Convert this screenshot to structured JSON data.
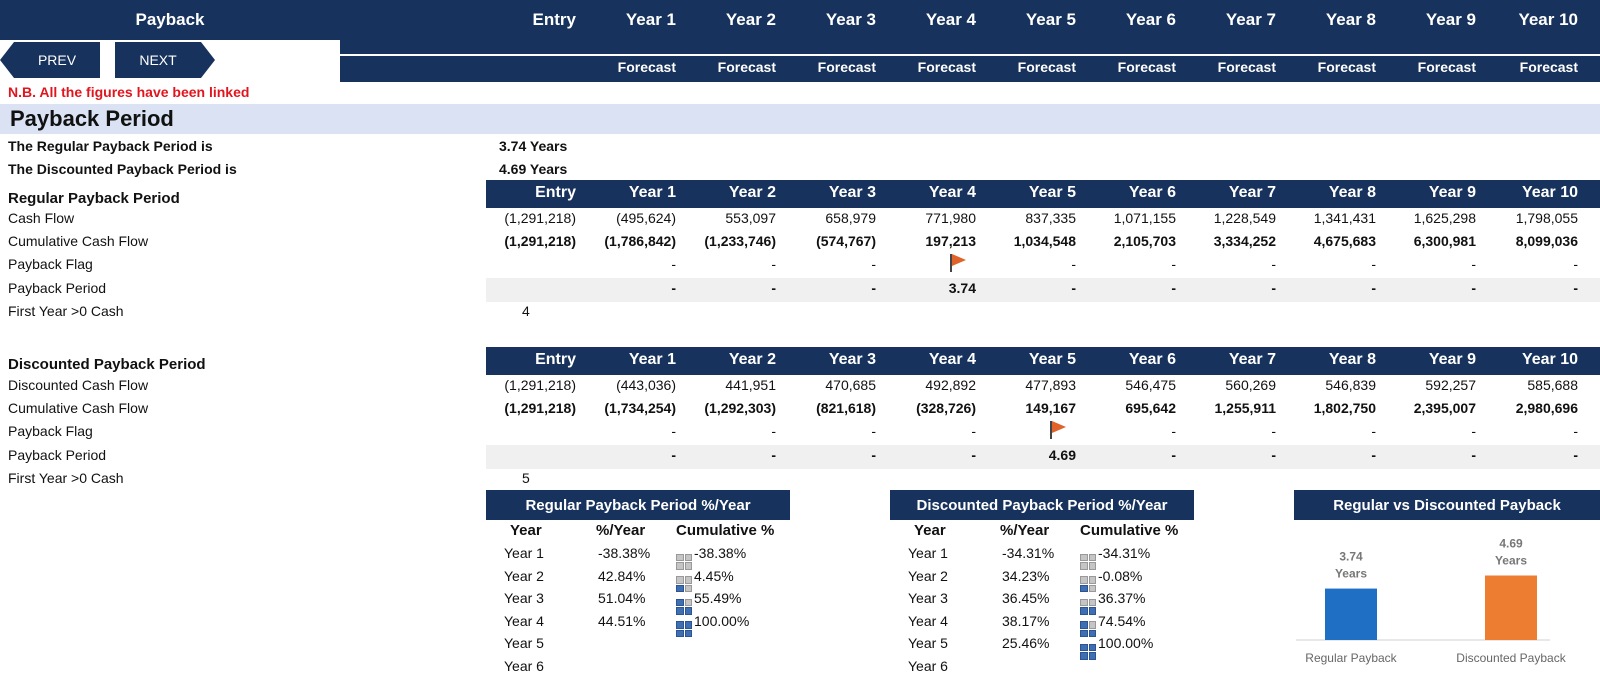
{
  "header": {
    "title": "Payback",
    "columns": [
      "Entry",
      "Year 1",
      "Year 2",
      "Year 3",
      "Year 4",
      "Year 5",
      "Year 6",
      "Year 7",
      "Year 8",
      "Year 9",
      "Year 10"
    ],
    "forecast_label": "Forecast",
    "prev_label": "PREV",
    "next_label": "NEXT"
  },
  "note": "N.B. All the figures have been linked",
  "section_title": "Payback Period",
  "summary": {
    "regular_label": "The Regular Payback Period is",
    "regular_value": "3.74 Years",
    "discounted_label": "The Discounted Payback Period is",
    "discounted_value": "4.69 Years"
  },
  "regular": {
    "title": "Regular Payback Period",
    "columns": [
      "Entry",
      "Year 1",
      "Year 2",
      "Year 3",
      "Year 4",
      "Year 5",
      "Year 6",
      "Year 7",
      "Year 8",
      "Year 9",
      "Year 10"
    ],
    "rows": [
      {
        "label": "Cash Flow",
        "values": [
          "(1,291,218)",
          "(495,624)",
          "553,097",
          "658,979",
          "771,980",
          "837,335",
          "1,071,155",
          "1,228,549",
          "1,341,431",
          "1,625,298",
          "1,798,055"
        ]
      },
      {
        "label": "Cumulative Cash Flow",
        "values": [
          "(1,291,218)",
          "(1,786,842)",
          "(1,233,746)",
          "(574,767)",
          "197,213",
          "1,034,548",
          "2,105,703",
          "3,334,252",
          "4,675,683",
          "6,300,981",
          "8,099,036"
        ]
      },
      {
        "label": "Payback Flag",
        "values": [
          "",
          "-",
          "-",
          "-",
          "FLAG",
          "-",
          "-",
          "-",
          "-",
          "-",
          "-"
        ]
      },
      {
        "label": "Payback Period",
        "values": [
          "",
          "-",
          "-",
          "-",
          "3.74",
          "-",
          "-",
          "-",
          "-",
          "-",
          "-"
        ]
      },
      {
        "label": "First Year >0 Cash",
        "values": [
          "4"
        ]
      }
    ]
  },
  "discounted": {
    "title": "Discounted Payback Period",
    "columns": [
      "Entry",
      "Year 1",
      "Year 2",
      "Year 3",
      "Year 4",
      "Year 5",
      "Year 6",
      "Year 7",
      "Year 8",
      "Year 9",
      "Year 10"
    ],
    "rows": [
      {
        "label": "Discounted Cash Flow",
        "values": [
          "(1,291,218)",
          "(443,036)",
          "441,951",
          "470,685",
          "492,892",
          "477,893",
          "546,475",
          "560,269",
          "546,839",
          "592,257",
          "585,688"
        ]
      },
      {
        "label": "Cumulative Cash Flow",
        "values": [
          "(1,291,218)",
          "(1,734,254)",
          "(1,292,303)",
          "(821,618)",
          "(328,726)",
          "149,167",
          "695,642",
          "1,255,911",
          "1,802,750",
          "2,395,007",
          "2,980,696"
        ]
      },
      {
        "label": "Payback Flag",
        "values": [
          "",
          "-",
          "-",
          "-",
          "-",
          "FLAG",
          "-",
          "-",
          "-",
          "-",
          "-"
        ]
      },
      {
        "label": "Payback Period",
        "values": [
          "",
          "-",
          "-",
          "-",
          "-",
          "4.69",
          "-",
          "-",
          "-",
          "-",
          "-"
        ]
      },
      {
        "label": "First Year >0 Cash",
        "values": [
          "5"
        ]
      }
    ]
  },
  "regular_pct": {
    "title": "Regular Payback Period %/Year",
    "headers": [
      "Year",
      "%/Year",
      "Cumulative %"
    ],
    "rows": [
      {
        "year": "Year 1",
        "pct": "-38.38%",
        "cum": "-38.38%",
        "quad": 0
      },
      {
        "year": "Year 2",
        "pct": "42.84%",
        "cum": "4.45%",
        "quad": 1
      },
      {
        "year": "Year 3",
        "pct": "51.04%",
        "cum": "55.49%",
        "quad": 3
      },
      {
        "year": "Year 4",
        "pct": "44.51%",
        "cum": "100.00%",
        "quad": 4
      },
      {
        "year": "Year 5",
        "pct": "",
        "cum": "",
        "quad": -1
      },
      {
        "year": "Year 6",
        "pct": "",
        "cum": "",
        "quad": -1
      }
    ]
  },
  "discounted_pct": {
    "title": "Discounted Payback Period %/Year",
    "headers": [
      "Year",
      "%/Year",
      "Cumulative %"
    ],
    "rows": [
      {
        "year": "Year 1",
        "pct": "-34.31%",
        "cum": "-34.31%",
        "quad": 0
      },
      {
        "year": "Year 2",
        "pct": "34.23%",
        "cum": "-0.08%",
        "quad": 1
      },
      {
        "year": "Year 3",
        "pct": "36.45%",
        "cum": "36.37%",
        "quad": 2
      },
      {
        "year": "Year 4",
        "pct": "38.17%",
        "cum": "74.54%",
        "quad": 3
      },
      {
        "year": "Year 5",
        "pct": "25.46%",
        "cum": "100.00%",
        "quad": 4
      },
      {
        "year": "Year 6",
        "pct": "",
        "cum": "",
        "quad": -1
      }
    ]
  },
  "chart_data": {
    "type": "bar",
    "title": "Regular vs Discounted Payback",
    "categories": [
      "Regular Payback",
      "Discounted Payback"
    ],
    "values": [
      3.74,
      4.69
    ],
    "data_labels": [
      "3.74 Years",
      "4.69 Years"
    ],
    "colors": [
      "#1f6fc5",
      "#ed7d31"
    ],
    "ylim": [
      0,
      8
    ]
  }
}
